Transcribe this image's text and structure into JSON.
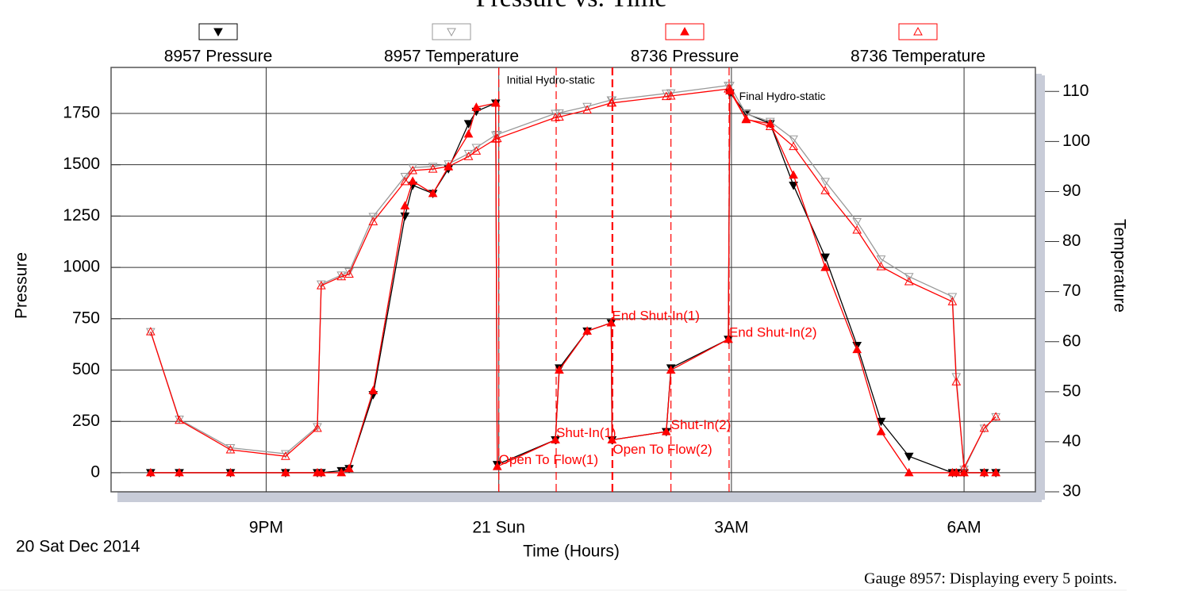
{
  "chart_data": {
    "type": "line",
    "title": "Pressure vs. Time",
    "x_label": "Time (Hours)",
    "y_label": "Pressure",
    "y2_label": "Temperature",
    "date_label": "20 Sat Dec 2014",
    "footnote": "Gauge 8957: Displaying every 5 points.",
    "xlim": [
      19.0,
      30.92
    ],
    "xticks": [
      {
        "value": 21,
        "label": "9PM"
      },
      {
        "value": 24,
        "label": "21 Sun"
      },
      {
        "value": 27,
        "label": "3AM"
      },
      {
        "value": 30,
        "label": "6AM"
      }
    ],
    "ylim": [
      -93,
      1974
    ],
    "yticks": [
      0,
      250,
      500,
      750,
      1000,
      1250,
      1500,
      1750
    ],
    "y2lim": [
      30,
      114.8
    ],
    "y2ticks": [
      30,
      40,
      50,
      60,
      70,
      80,
      90,
      100,
      110
    ],
    "grid": true,
    "x": [
      19.51,
      19.88,
      20.54,
      21.25,
      21.66,
      21.71,
      21.97,
      22.07,
      22.38,
      22.79,
      22.89,
      23.15,
      23.35,
      23.61,
      23.71,
      23.96,
      23.98,
      24.73,
      24.78,
      25.14,
      25.45,
      25.46,
      26.16,
      26.22,
      26.96,
      26.98,
      27.19,
      27.5,
      27.8,
      28.21,
      28.62,
      28.93,
      29.29,
      29.85,
      29.9,
      30.0,
      30.26,
      30.41
    ],
    "series": [
      {
        "name": "8957 Pressure",
        "color": "#000000",
        "marker": "triangle-down",
        "filled": true,
        "axis": "y",
        "values": [
          0,
          0,
          0,
          0,
          0,
          0,
          10,
          20,
          380,
          1250,
          1400,
          1360,
          1480,
          1700,
          1760,
          1800,
          40,
          160,
          510,
          690,
          730,
          160,
          200,
          510,
          650,
          1850,
          1750,
          1700,
          1400,
          1050,
          620,
          250,
          80,
          0,
          0,
          0,
          0,
          0
        ]
      },
      {
        "name": "8957 Temperature",
        "color": "#999999",
        "marker": "triangle-down",
        "filled": false,
        "axis": "y2",
        "values": [
          62,
          44.5,
          38.8,
          37.6,
          43,
          71.5,
          73.3,
          74,
          85,
          93,
          94.8,
          95,
          95.5,
          97.6,
          98.8,
          101.3,
          101.4,
          105.6,
          105.7,
          107,
          108.3,
          108.3,
          109.6,
          109.7,
          111.2,
          111.2,
          105.5,
          104,
          100.5,
          92,
          84,
          76.5,
          73,
          69,
          53,
          34.5,
          42.7,
          45
        ]
      },
      {
        "name": "8736 Pressure",
        "color": "#ff0000",
        "marker": "triangle-up",
        "filled": true,
        "axis": "y",
        "values": [
          0,
          0,
          0,
          0,
          0,
          0,
          0,
          20,
          400,
          1300,
          1420,
          1360,
          1490,
          1650,
          1780,
          1800,
          30,
          160,
          500,
          690,
          730,
          160,
          200,
          500,
          650,
          1860,
          1720,
          1700,
          1450,
          1000,
          600,
          200,
          0,
          0,
          0,
          0,
          0,
          0
        ]
      },
      {
        "name": "8736 Temperature",
        "color": "#ff0000",
        "marker": "triangle-up",
        "filled": false,
        "axis": "y2",
        "values": [
          62,
          44.3,
          38.4,
          37.1,
          42.7,
          71.2,
          73,
          73.5,
          84,
          92,
          94.2,
          94.5,
          95,
          97,
          98.1,
          100.5,
          100.6,
          104.8,
          104.9,
          106.3,
          107.7,
          107.7,
          109,
          109.1,
          110.5,
          110.5,
          104.5,
          103,
          99,
          90.2,
          82.3,
          75,
          72,
          68,
          52,
          34.8,
          42.7,
          45
        ]
      }
    ],
    "annotations": [
      {
        "text": "Initial Hydro-static",
        "x": 24.1,
        "y": 1910,
        "color": "#000000"
      },
      {
        "text": "Final Hydro-static",
        "x": 27.1,
        "y": 1830,
        "color": "#000000"
      }
    ],
    "events": [
      {
        "text": "Open To Flow(1)",
        "x": 24.0,
        "y": 60
      },
      {
        "text": "Shut-In(1)",
        "x": 24.74,
        "y": 190
      },
      {
        "text": "End Shut-In(1)",
        "x": 25.46,
        "y": 760
      },
      {
        "text": "Open To Flow(2)",
        "x": 25.47,
        "y": 110
      },
      {
        "text": "Shut-In(2)",
        "x": 26.22,
        "y": 230
      },
      {
        "text": "End Shut-In(2)",
        "x": 26.97,
        "y": 680
      }
    ],
    "event_color": "#ff0000"
  }
}
